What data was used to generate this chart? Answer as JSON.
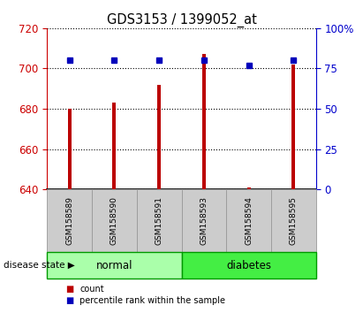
{
  "title": "GDS3153 / 1399052_at",
  "samples": [
    "GSM158589",
    "GSM158590",
    "GSM158591",
    "GSM158593",
    "GSM158594",
    "GSM158595"
  ],
  "counts": [
    680,
    683,
    692,
    707,
    641,
    702
  ],
  "percentiles": [
    80,
    80,
    80,
    80,
    77,
    80
  ],
  "ylim_left": [
    640,
    720
  ],
  "ylim_right": [
    0,
    100
  ],
  "yticks_left": [
    640,
    660,
    680,
    700,
    720
  ],
  "yticks_right": [
    0,
    25,
    50,
    75,
    100
  ],
  "ytick_labels_right": [
    "0",
    "25",
    "50",
    "75",
    "100%"
  ],
  "groups": [
    {
      "label": "normal",
      "indices": [
        0,
        1,
        2
      ],
      "color": "#aaffaa"
    },
    {
      "label": "diabetes",
      "indices": [
        3,
        4,
        5
      ],
      "color": "#44ee44"
    }
  ],
  "bar_color": "#bb0000",
  "percentile_color": "#0000bb",
  "bar_width": 0.08,
  "axis_color_left": "#cc0000",
  "axis_color_right": "#0000cc",
  "background_color": "#ffffff",
  "grid_color": "#000000",
  "sample_box_color": "#cccccc",
  "disease_label": "disease state",
  "legend_count": "count",
  "legend_percentile": "percentile rank within the sample"
}
